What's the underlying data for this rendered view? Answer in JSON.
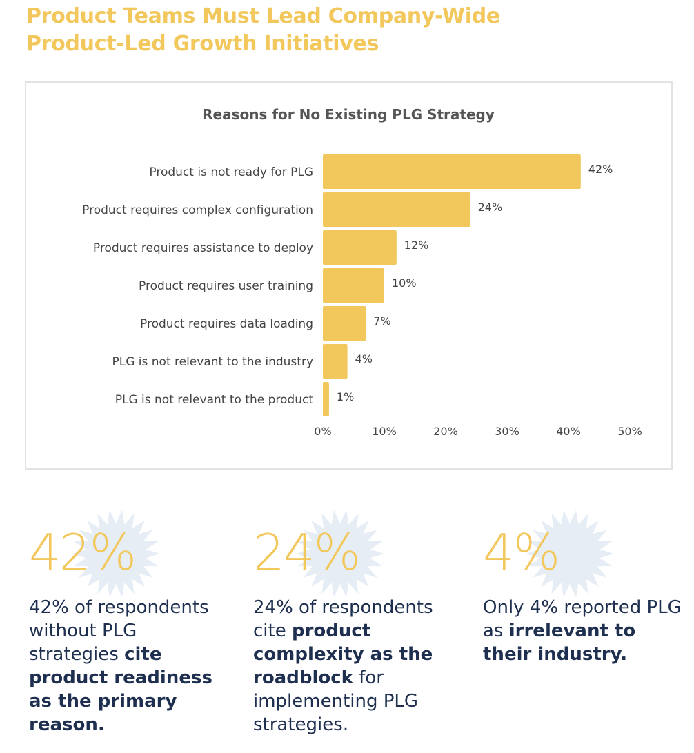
{
  "headline": {
    "line1": "Product Teams Must Lead Company-Wide",
    "line2": "Product-Led Growth Initiatives"
  },
  "colors": {
    "accent": "#f2c75c",
    "text_dark": "#1e2f4f",
    "axis_text": "#444444",
    "burst": "#e6edf5"
  },
  "chart_data": {
    "type": "bar",
    "orientation": "horizontal",
    "title": "Reasons for No Existing PLG Strategy",
    "categories": [
      "Product is not ready for PLG",
      "Product requires complex configuration",
      "Product requires assistance to deploy",
      "Product requires user training",
      "Product requires data loading",
      "PLG is not relevant to the industry",
      "PLG is not relevant to the product"
    ],
    "values": [
      42,
      24,
      12,
      10,
      7,
      4,
      1
    ],
    "value_labels": [
      "42%",
      "24%",
      "12%",
      "10%",
      "7%",
      "4%",
      "1%"
    ],
    "xlim": [
      0,
      50
    ],
    "xticks": [
      0,
      10,
      20,
      30,
      40,
      50
    ],
    "xtick_labels": [
      "0%",
      "10%",
      "20%",
      "30%",
      "40%",
      "50%"
    ],
    "xlabel": "",
    "ylabel": "",
    "grid": false,
    "legend": "none"
  },
  "stats": [
    {
      "number": "42%",
      "text": [
        {
          "t": "42% of respondents without PLG strategies ",
          "bold": false
        },
        {
          "t": "cite product readiness as the primary reason.",
          "bold": true
        }
      ]
    },
    {
      "number": "24%",
      "text": [
        {
          "t": "24% of respondents cite ",
          "bold": false
        },
        {
          "t": "product complexity as the roadblock",
          "bold": true
        },
        {
          "t": " for implementing PLG strategies.",
          "bold": false
        }
      ]
    },
    {
      "number": "4%",
      "text": [
        {
          "t": "Only 4% reported PLG as ",
          "bold": false
        },
        {
          "t": "irrelevant to their industry.",
          "bold": true
        }
      ]
    }
  ]
}
